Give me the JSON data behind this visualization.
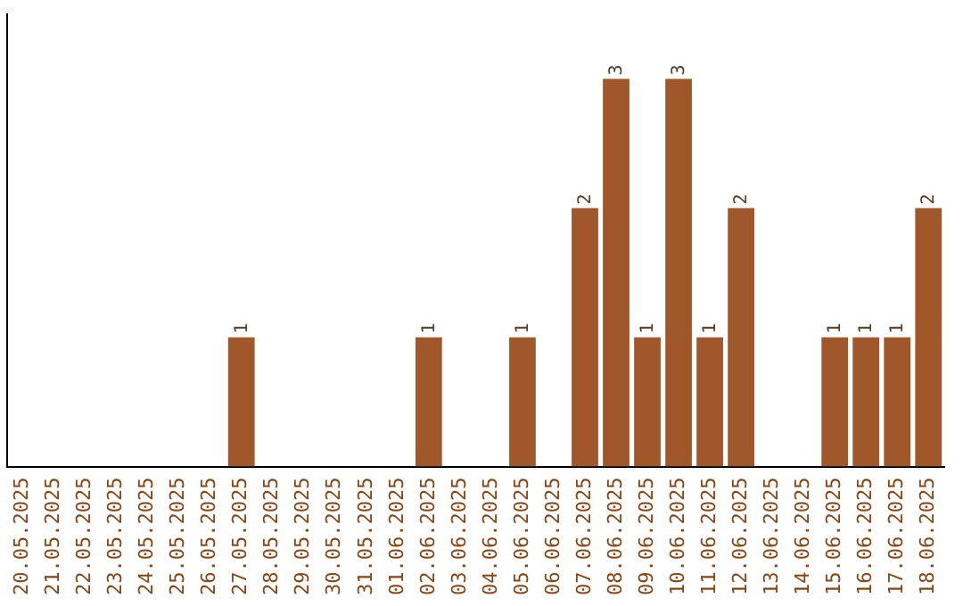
{
  "chart_data": {
    "type": "bar",
    "categories": [
      "20.05.2025",
      "21.05.2025",
      "22.05.2025",
      "23.05.2025",
      "24.05.2025",
      "25.05.2025",
      "26.05.2025",
      "27.05.2025",
      "28.05.2025",
      "29.05.2025",
      "30.05.2025",
      "31.05.2025",
      "01.06.2025",
      "02.06.2025",
      "03.06.2025",
      "04.06.2025",
      "05.06.2025",
      "06.06.2025",
      "07.06.2025",
      "08.06.2025",
      "09.06.2025",
      "10.06.2025",
      "11.06.2025",
      "12.06.2025",
      "13.06.2025",
      "14.06.2025",
      "15.06.2025",
      "16.06.2025",
      "17.06.2025",
      "18.06.2025"
    ],
    "values": [
      0,
      0,
      0,
      0,
      0,
      0,
      0,
      1,
      0,
      0,
      0,
      0,
      0,
      1,
      0,
      0,
      1,
      0,
      2,
      3,
      1,
      3,
      1,
      2,
      0,
      0,
      1,
      1,
      1,
      2
    ],
    "value_labels": [
      null,
      null,
      null,
      null,
      null,
      null,
      null,
      "1",
      null,
      null,
      null,
      null,
      null,
      "1",
      null,
      null,
      "1",
      null,
      "2",
      "3",
      "1",
      "3",
      "1",
      "2",
      null,
      null,
      "1",
      "1",
      "1",
      "2"
    ],
    "color": "#a0582a",
    "tick_labels": "x",
    "grid": false,
    "legend": false
  }
}
